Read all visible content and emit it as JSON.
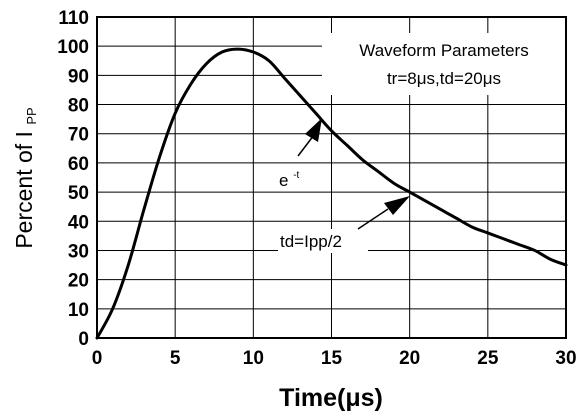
{
  "chart_data": {
    "type": "line",
    "title": "",
    "xlabel": "Time(μs)",
    "ylabel_main": "Percent of I",
    "ylabel_sub": "PP",
    "xlim": [
      0,
      30
    ],
    "ylim": [
      0,
      110
    ],
    "xticks": [
      0,
      5,
      10,
      15,
      20,
      25,
      30
    ],
    "yticks": [
      0,
      10,
      20,
      30,
      40,
      50,
      60,
      70,
      80,
      90,
      100,
      110
    ],
    "grid": true,
    "legend": "none",
    "line_color": "#000000",
    "series": [
      {
        "x": [
          0,
          1,
          2,
          3,
          4,
          5,
          6,
          7,
          8,
          9,
          10,
          11,
          12,
          13,
          14,
          15,
          16,
          17,
          18,
          19,
          20,
          21,
          22,
          23,
          24,
          25,
          26,
          27,
          28,
          29,
          30
        ],
        "values": [
          0,
          10,
          25,
          44,
          62,
          77,
          87,
          94,
          98,
          99,
          98,
          95,
          89,
          83,
          77,
          71,
          66,
          61,
          57,
          53,
          50,
          47,
          44,
          41,
          38,
          36,
          34,
          32,
          30,
          27,
          25
        ]
      }
    ],
    "annotations": {
      "box_title": "Waveform Parameters",
      "box_params": "tr=8μs,td=20μs",
      "decay_base": "e",
      "decay_exp": "-t",
      "td_label": "td=Ipp/2"
    }
  }
}
